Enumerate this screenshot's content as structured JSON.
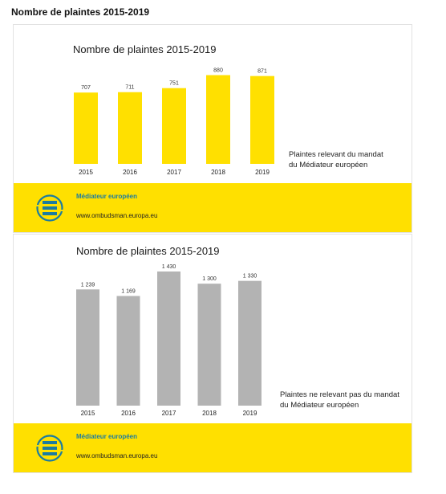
{
  "page_title": "Nombre de plaintes 2015-2019",
  "colors": {
    "yellow": "#ffe000",
    "gray": "#b3b3b3",
    "brand_blue": "#1c7ca0"
  },
  "footer": {
    "brand": "Médiateur européen",
    "url": "www.ombudsman.europa.eu",
    "logo_icon": "ombudsman-logo-icon"
  },
  "chart_data": [
    {
      "type": "bar",
      "title": "Nombre de plaintes 2015-2019",
      "categories": [
        "2015",
        "2016",
        "2017",
        "2018",
        "2019"
      ],
      "values": [
        707,
        711,
        751,
        880,
        871
      ],
      "value_labels": [
        "707",
        "711",
        "751",
        "880",
        "871"
      ],
      "series": [
        {
          "name": "Plaintes relevant du mandat du Médiateur européen",
          "values": [
            707,
            711,
            751,
            880,
            871
          ]
        }
      ],
      "caption_lines": [
        "Plaintes relevant du mandat",
        "du Médiateur européen"
      ],
      "color": "#ffe000",
      "ylim": [
        0,
        900
      ],
      "grid": false
    },
    {
      "type": "bar",
      "title": "Nombre de plaintes 2015-2019",
      "categories": [
        "2015",
        "2016",
        "2017",
        "2018",
        "2019"
      ],
      "values": [
        1239,
        1169,
        1430,
        1300,
        1330
      ],
      "value_labels": [
        "1 239",
        "1 169",
        "1 430",
        "1 300",
        "1 330"
      ],
      "series": [
        {
          "name": "Plaintes ne relevant pas du mandat du Médiateur européen",
          "values": [
            1239,
            1169,
            1430,
            1300,
            1330
          ]
        }
      ],
      "caption_lines": [
        "Plaintes ne relevant pas du mandat",
        "du Médiateur européen"
      ],
      "color": "#b3b3b3",
      "ylim": [
        0,
        1430
      ],
      "grid": false
    }
  ]
}
